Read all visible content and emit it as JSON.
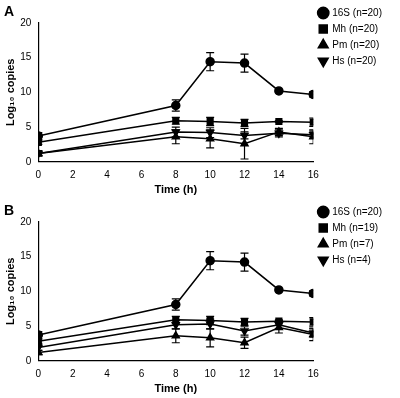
{
  "chart_data": [
    {
      "type": "line",
      "title": "A",
      "x_label": "Time (h)",
      "y_label": "Log₁₀ copies",
      "xlim": [
        0,
        16
      ],
      "xticks": [
        0,
        2,
        4,
        6,
        8,
        10,
        12,
        14,
        16
      ],
      "ylim": [
        0,
        20
      ],
      "yticks": [
        0,
        5,
        10,
        15,
        20
      ],
      "grid": false,
      "legend": "top-right",
      "series": [
        {
          "name": "16S (n=20)",
          "color": "#000000",
          "marker": "circle",
          "line_style": "solid",
          "x": [
            0,
            8,
            10,
            12,
            14,
            16
          ],
          "values": [
            3.7,
            8.1,
            14.4,
            14.2,
            10.2,
            9.7
          ],
          "errors": [
            0.5,
            0.8,
            1.3,
            1.3,
            0.1,
            0.4
          ]
        },
        {
          "name": "Mh (n=20)",
          "color": "#000000",
          "marker": "square",
          "line_style": "solid",
          "x": [
            0,
            8,
            10,
            12,
            14,
            16
          ],
          "values": [
            2.8,
            5.9,
            5.8,
            5.6,
            5.8,
            5.7
          ],
          "errors": [
            0.3,
            0.5,
            0.6,
            0.5,
            0.1,
            0.6
          ]
        },
        {
          "name": "Pm (n=20)",
          "color": "#000000",
          "marker": "triangle",
          "line_style": "solid",
          "x": [
            0,
            8,
            10,
            12,
            14,
            16
          ],
          "values": [
            1.2,
            3.6,
            3.3,
            2.6,
            4.3,
            3.6
          ],
          "errors": [
            0.3,
            1.0,
            1.3,
            2.2,
            0.5,
            1.0
          ]
        },
        {
          "name": "Hs (n=20)",
          "color": "#000000",
          "marker": "triangle_down",
          "line_style": "solid",
          "x": [
            0,
            8,
            10,
            12,
            14,
            16
          ],
          "values": [
            1.2,
            4.3,
            4.2,
            3.8,
            4.1,
            3.9
          ],
          "errors": [
            0.4,
            0.7,
            0.7,
            0.5,
            0.5,
            0.5
          ]
        }
      ]
    },
    {
      "type": "line",
      "title": "B",
      "x_label": "Time (h)",
      "y_label": "Log₁₀ copies",
      "xlim": [
        0,
        16
      ],
      "xticks": [
        0,
        2,
        4,
        6,
        8,
        10,
        12,
        14,
        16
      ],
      "ylim": [
        0,
        20
      ],
      "yticks": [
        0,
        5,
        10,
        15,
        20
      ],
      "grid": false,
      "legend": "top-right",
      "series": [
        {
          "name": "16S (n=20)",
          "color": "#000000",
          "marker": "circle",
          "line_style": "solid",
          "x": [
            0,
            8,
            10,
            12,
            14,
            16
          ],
          "values": [
            3.7,
            8.1,
            14.4,
            14.2,
            10.2,
            9.7
          ],
          "errors": [
            0.5,
            0.8,
            1.3,
            1.3,
            0.1,
            0.4
          ]
        },
        {
          "name": "Mh (n=19)",
          "color": "#000000",
          "marker": "square",
          "line_style": "solid",
          "x": [
            0,
            8,
            10,
            12,
            14,
            16
          ],
          "values": [
            2.8,
            5.9,
            5.8,
            5.6,
            5.7,
            5.6
          ],
          "errors": [
            0.3,
            0.5,
            0.6,
            0.5,
            0.2,
            0.6
          ]
        },
        {
          "name": "Pm (n=7)",
          "color": "#000000",
          "marker": "triangle",
          "line_style": "solid",
          "x": [
            0,
            8,
            10,
            12,
            14,
            16
          ],
          "values": [
            1.2,
            3.6,
            3.3,
            2.6,
            4.8,
            3.8
          ],
          "errors": [
            0.3,
            1.0,
            1.3,
            0.8,
            0.8,
            0.9
          ]
        },
        {
          "name": "Hs (n=4)",
          "color": "#000000",
          "marker": "triangle_down",
          "line_style": "solid",
          "x": [
            0,
            8,
            10,
            12,
            14,
            16
          ],
          "values": [
            1.9,
            5.2,
            5.3,
            4.3,
            5.2,
            4.0
          ],
          "errors": [
            0.4,
            0.6,
            0.7,
            0.6,
            0.6,
            0.6
          ]
        }
      ]
    }
  ]
}
